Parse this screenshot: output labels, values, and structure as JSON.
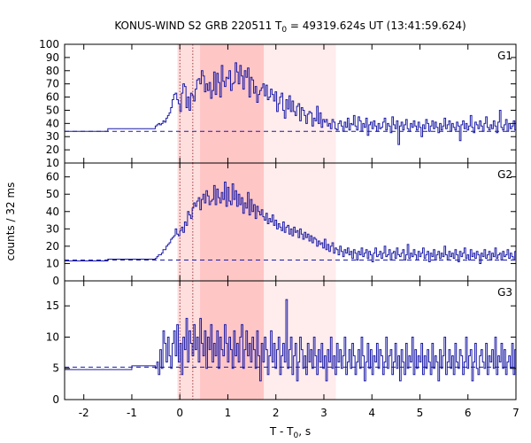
{
  "chart_data": {
    "type": "line",
    "title": {
      "prefix": "KONUS-WIND S2 GRB 220511 T",
      "sub": "0",
      "suffix": " = 49319.624s UT (13:41:59.624)"
    },
    "xlabel": {
      "prefix": "T - T",
      "sub": "0",
      "suffix": ", s"
    },
    "ylabel": "counts / 32 ms",
    "xlim": [
      -2.4,
      7.0
    ],
    "x_ticks": [
      -2,
      -1,
      0,
      1,
      2,
      3,
      4,
      5,
      6,
      7
    ],
    "x_tick_labels": [
      "-2",
      "-1",
      "0",
      "1",
      "2",
      "3",
      "4",
      "5",
      "6",
      "7"
    ],
    "shaded_intervals": [
      {
        "x": [
          -0.05,
          1.75
        ],
        "color": "#ffdede",
        "role": "pulse-region"
      },
      {
        "x": [
          0.42,
          1.75
        ],
        "color": "#ffc6c6",
        "role": "peak-region"
      },
      {
        "x": [
          1.75,
          3.25
        ],
        "color": "#ffecec",
        "role": "tail-region"
      }
    ],
    "vlines_dotted": [
      0.0,
      0.27
    ],
    "colors": {
      "curve": "#1a1aa6",
      "background_line": "#1a1aa6",
      "vline": "#8b1a1a",
      "axis": "#000000"
    },
    "panels": [
      {
        "label": "G1",
        "ylim": [
          10,
          100
        ],
        "y_ticks": [
          10,
          20,
          30,
          40,
          50,
          60,
          70,
          80,
          90,
          100
        ],
        "y_tick_labels": [
          "10",
          "20",
          "30",
          "40",
          "50",
          "60",
          "70",
          "80",
          "90",
          "100"
        ],
        "background_level": 34,
        "pre_trigger_steps": [
          {
            "x0": -2.4,
            "x1": -1.5,
            "y": 34
          },
          {
            "x0": -1.5,
            "x1": -0.512,
            "y": 36
          }
        ],
        "bin_width": 0.032,
        "x_start": -0.512,
        "values": [
          38,
          39,
          40,
          39,
          40,
          42,
          41,
          44,
          46,
          48,
          52,
          58,
          62,
          63,
          58,
          55,
          49,
          63,
          70,
          68,
          52,
          60,
          50,
          63,
          61,
          57,
          66,
          73,
          74,
          70,
          80,
          76,
          64,
          70,
          65,
          71,
          59,
          65,
          79,
          62,
          78,
          71,
          60,
          84,
          72,
          68,
          75,
          74,
          80,
          65,
          70,
          71,
          86,
          79,
          70,
          84,
          76,
          66,
          80,
          75,
          82,
          60,
          75,
          73,
          63,
          68,
          56,
          62,
          65,
          67,
          70,
          61,
          69,
          58,
          60,
          66,
          62,
          57,
          64,
          49,
          55,
          60,
          63,
          50,
          44,
          58,
          51,
          61,
          49,
          57,
          49,
          46,
          53,
          55,
          42,
          52,
          50,
          46,
          40,
          47,
          49,
          48,
          38,
          44,
          42,
          53,
          40,
          48,
          37,
          43,
          41,
          43,
          38,
          40,
          36,
          43,
          41,
          36,
          35,
          40,
          42,
          38,
          34,
          41,
          37,
          44,
          35,
          40,
          39,
          46,
          38,
          35,
          45,
          42,
          34,
          40,
          37,
          44,
          31,
          39,
          41,
          36,
          42,
          38,
          34,
          40,
          36,
          37,
          41,
          44,
          35,
          40,
          38,
          33,
          45,
          39,
          36,
          42,
          24,
          38,
          41,
          35,
          39,
          43,
          36,
          34,
          40,
          37,
          42,
          38,
          35,
          41,
          37,
          30,
          39,
          36,
          43,
          40,
          34,
          38,
          42,
          36,
          41,
          37,
          33,
          40,
          35,
          38,
          44,
          36,
          39,
          42,
          34,
          40,
          37,
          35,
          41,
          38,
          27,
          39,
          42,
          36,
          40,
          35,
          38,
          46,
          37,
          33,
          41,
          39,
          36,
          42,
          38,
          34,
          40,
          45,
          37,
          35,
          39,
          36,
          42,
          38,
          33,
          41,
          50,
          37,
          35,
          39,
          43,
          34,
          40,
          36,
          38,
          42,
          35,
          39,
          37,
          41,
          34,
          38,
          44,
          36,
          40,
          37,
          35,
          42,
          39,
          34,
          38,
          51,
          36,
          40,
          43,
          37,
          35
        ]
      },
      {
        "label": "G2",
        "ylim": [
          0,
          68
        ],
        "y_ticks": [
          0,
          10,
          20,
          30,
          40,
          50,
          60
        ],
        "y_tick_labels": [
          "0",
          "10",
          "20",
          "30",
          "40",
          "50",
          "60"
        ],
        "background_level": 12,
        "pre_trigger_steps": [
          {
            "x0": -2.4,
            "x1": -1.5,
            "y": 11.5
          },
          {
            "x0": -1.5,
            "x1": -0.512,
            "y": 12.5
          }
        ],
        "bin_width": 0.032,
        "x_start": -0.512,
        "values": [
          13,
          14,
          15,
          15,
          16,
          18,
          18,
          20,
          21,
          22,
          24,
          25,
          26,
          30,
          27,
          26,
          29,
          31,
          28,
          34,
          32,
          40,
          38,
          36,
          42,
          45,
          43,
          46,
          48,
          41,
          47,
          50,
          45,
          52,
          49,
          44,
          46,
          47,
          55,
          44,
          53,
          48,
          45,
          51,
          47,
          57,
          43,
          54,
          46,
          44,
          56,
          47,
          52,
          43,
          50,
          44,
          48,
          39,
          45,
          42,
          51,
          38,
          47,
          40,
          44,
          36,
          43,
          40,
          38,
          41,
          37,
          35,
          39,
          33,
          36,
          34,
          38,
          32,
          35,
          30,
          33,
          31,
          29,
          34,
          28,
          31,
          32,
          27,
          30,
          26,
          31,
          28,
          29,
          25,
          30,
          27,
          24,
          28,
          25,
          27,
          23,
          26,
          22,
          25,
          24,
          20,
          23,
          21,
          22,
          19,
          24,
          18,
          21,
          17,
          20,
          22,
          16,
          19,
          18,
          15,
          20,
          17,
          14,
          18,
          16,
          19,
          15,
          17,
          13,
          18,
          16,
          12,
          17,
          15,
          19,
          14,
          16,
          18,
          13,
          17,
          15,
          11,
          16,
          19,
          14,
          15,
          17,
          13,
          16,
          20,
          14,
          15,
          18,
          12,
          16,
          17,
          13,
          19,
          15,
          14,
          16,
          18,
          12,
          15,
          21,
          13,
          16,
          14,
          18,
          15,
          12,
          17,
          14,
          16,
          19,
          13,
          15,
          17,
          11,
          16,
          14,
          18,
          12,
          15,
          17,
          13,
          16,
          14,
          20,
          15,
          12,
          17,
          14,
          16,
          13,
          18,
          15,
          11,
          17,
          14,
          16,
          19,
          13,
          15,
          12,
          18,
          14,
          16,
          13,
          17,
          15,
          10,
          16,
          14,
          18,
          13,
          15,
          17,
          12,
          16,
          14,
          19,
          13,
          15,
          16,
          12,
          17,
          14,
          15,
          18,
          13,
          16,
          14,
          12,
          17,
          15,
          16,
          13,
          18,
          14,
          15,
          11,
          17,
          16,
          13,
          15,
          18
        ]
      },
      {
        "label": "G3",
        "ylim": [
          0,
          19
        ],
        "y_ticks": [
          0,
          5,
          10,
          15
        ],
        "y_tick_labels": [
          "0",
          "5",
          "10",
          "15"
        ],
        "background_level": 5.2,
        "pre_trigger_steps": [
          {
            "x0": -2.4,
            "x1": -1.0,
            "y": 4.8
          },
          {
            "x0": -1.0,
            "x1": -0.512,
            "y": 5.4
          }
        ],
        "bin_width": 0.032,
        "x_start": -0.512,
        "values": [
          5,
          6,
          4,
          8,
          5,
          11,
          9,
          6,
          10,
          7,
          5,
          9,
          11,
          7,
          12,
          6,
          9,
          4,
          10,
          8,
          13,
          6,
          11,
          9,
          7,
          12,
          8,
          10,
          6,
          13,
          9,
          7,
          11,
          5,
          10,
          8,
          12,
          6,
          9,
          7,
          11,
          5,
          10,
          8,
          7,
          12,
          9,
          6,
          10,
          8,
          5,
          11,
          7,
          9,
          6,
          10,
          12,
          5,
          8,
          11,
          7,
          9,
          6,
          10,
          8,
          5,
          11,
          7,
          3,
          9,
          6,
          10,
          8,
          4,
          7,
          11,
          6,
          9,
          5,
          8,
          10,
          4,
          7,
          9,
          6,
          16,
          5,
          8,
          10,
          4,
          7,
          9,
          3,
          6,
          10,
          8,
          5,
          7,
          4,
          9,
          6,
          8,
          5,
          10,
          7,
          4,
          8,
          6,
          9,
          5,
          7,
          3,
          8,
          6,
          10,
          5,
          7,
          4,
          9,
          6,
          8,
          5,
          7,
          10,
          4,
          6,
          8,
          5,
          9,
          7,
          4,
          6,
          8,
          5,
          10,
          7,
          3,
          6,
          9,
          5,
          8,
          4,
          7,
          6,
          9,
          5,
          8,
          7,
          4,
          6,
          10,
          5,
          7,
          8,
          4,
          6,
          9,
          5,
          7,
          3,
          8,
          6,
          4,
          9,
          5,
          7,
          6,
          10,
          4,
          8,
          5,
          7,
          6,
          9,
          4,
          7,
          5,
          8,
          6,
          4,
          9,
          5,
          7,
          6,
          3,
          8,
          5,
          7,
          10,
          4,
          6,
          8,
          5,
          7,
          4,
          9,
          6,
          5,
          8,
          7,
          4,
          6,
          10,
          5,
          7,
          8,
          3,
          6,
          9,
          5,
          4,
          7,
          8,
          6,
          5,
          9,
          4,
          7,
          6,
          8,
          5,
          10,
          4,
          7,
          6,
          9,
          5,
          8,
          4,
          6,
          7,
          5,
          9,
          4,
          8,
          6,
          5,
          7,
          10,
          4,
          6,
          8,
          5,
          7,
          4,
          9,
          6,
          5
        ]
      }
    ]
  }
}
